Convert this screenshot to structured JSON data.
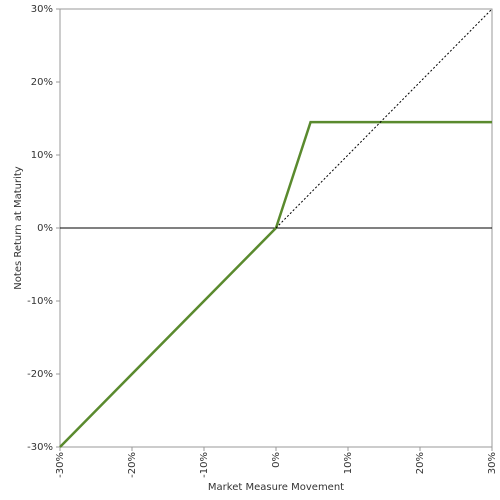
{
  "chart_data": {
    "type": "line",
    "x_label": "Market Measure Movement",
    "y_label": "Notes Return at Maturity",
    "series": [
      {
        "color": "#5a8a2e",
        "style": "solid",
        "x": [
          -30,
          0,
          4.8,
          30
        ],
        "values": [
          -30,
          0,
          14.5,
          14.5
        ]
      },
      {
        "color": "#000000",
        "style": "dotted",
        "x": [
          0,
          30
        ],
        "values": [
          0,
          30
        ]
      }
    ],
    "xlim": [
      -30,
      30
    ],
    "ylim": [
      -30,
      30
    ],
    "xticks": [
      {
        "value": -30,
        "label": "-30%"
      },
      {
        "value": -20,
        "label": "-20%"
      },
      {
        "value": -10,
        "label": "-10%"
      },
      {
        "value": 0,
        "label": "0%"
      },
      {
        "value": 10,
        "label": "10%"
      },
      {
        "value": 20,
        "label": "20%"
      },
      {
        "value": 30,
        "label": "30%"
      }
    ],
    "yticks": [
      {
        "value": -30,
        "label": "-30%"
      },
      {
        "value": -20,
        "label": "-20%"
      },
      {
        "value": -10,
        "label": "-10%"
      },
      {
        "value": 0,
        "label": "0%"
      },
      {
        "value": 10,
        "label": "10%"
      },
      {
        "value": 20,
        "label": "20%"
      },
      {
        "value": 30,
        "label": "30%"
      }
    ]
  }
}
